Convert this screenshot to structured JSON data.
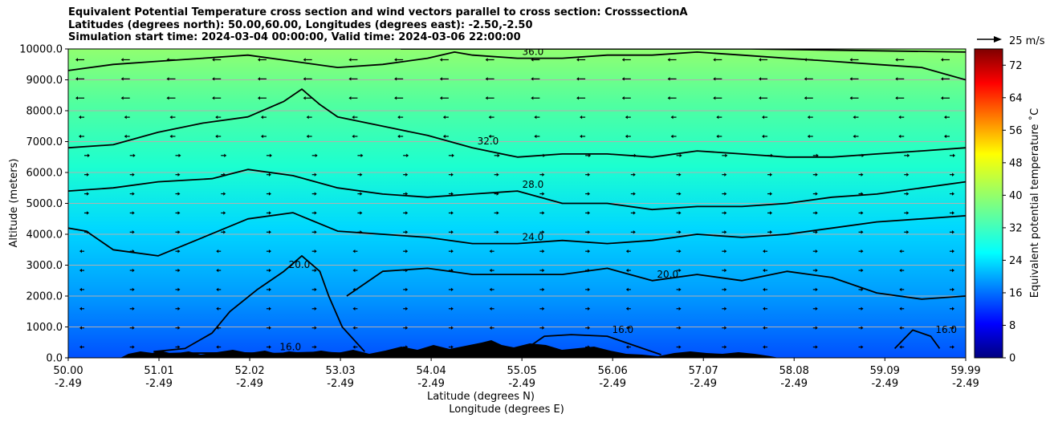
{
  "chart_data": {
    "type": "contour-filled",
    "title_lines": [
      "Equivalent Potential Temperature cross section and wind vectors parallel to cross section: CrosssectionA",
      "Latitudes (degrees north): 50.00,60.00, Longitudes (degrees east): -2.50,-2.50",
      "Simulation start time: 2024-03-04 00:00:00, Valid time: 2024-03-06 22:00:00"
    ],
    "ylabel": "Altitude (meters)",
    "xlabel": "Latitude (degrees N)",
    "xlabel2": "Longitude (degrees E)",
    "ylim": [
      0,
      10000
    ],
    "xlim": [
      50.0,
      59.99
    ],
    "yticks": [
      {
        "v": 0,
        "label": "0.0"
      },
      {
        "v": 1000,
        "label": "1000.0"
      },
      {
        "v": 2000,
        "label": "2000.0"
      },
      {
        "v": 3000,
        "label": "3000.0"
      },
      {
        "v": 4000,
        "label": "4000.0"
      },
      {
        "v": 5000,
        "label": "5000.0"
      },
      {
        "v": 6000,
        "label": "6000.0"
      },
      {
        "v": 7000,
        "label": "7000.0"
      },
      {
        "v": 8000,
        "label": "8000.0"
      },
      {
        "v": 9000,
        "label": "9000.0"
      },
      {
        "v": 10000,
        "label": "10000.0"
      }
    ],
    "xticks": [
      {
        "v": 50.0,
        "lat": "50.00",
        "lon": "-2.49"
      },
      {
        "v": 51.01,
        "lat": "51.01",
        "lon": "-2.49"
      },
      {
        "v": 52.02,
        "lat": "52.02",
        "lon": "-2.49"
      },
      {
        "v": 53.03,
        "lat": "53.03",
        "lon": "-2.49"
      },
      {
        "v": 54.04,
        "lat": "54.04",
        "lon": "-2.49"
      },
      {
        "v": 55.05,
        "lat": "55.05",
        "lon": "-2.49"
      },
      {
        "v": 56.06,
        "lat": "56.06",
        "lon": "-2.49"
      },
      {
        "v": 57.07,
        "lat": "57.07",
        "lon": "-2.49"
      },
      {
        "v": 58.08,
        "lat": "58.08",
        "lon": "-2.49"
      },
      {
        "v": 59.09,
        "lat": "59.09",
        "lon": "-2.49"
      },
      {
        "v": 59.99,
        "lat": "59.99",
        "lon": "-2.49"
      }
    ],
    "grid": "horizontal",
    "colorbar": {
      "label": "Equivalent potential temperature ˚C",
      "min": 0,
      "max": 76,
      "ticks": [
        "0",
        "8",
        "16",
        "24",
        "32",
        "40",
        "48",
        "56",
        "64",
        "72"
      ],
      "tick_values": [
        0,
        8,
        16,
        24,
        32,
        40,
        48,
        56,
        64,
        72
      ],
      "colormap": "jet"
    },
    "vector_key": {
      "label": "25 m/s"
    },
    "contours": [
      {
        "level": "16.0",
        "points": [
          [
            50.95,
            120
          ],
          [
            51.3,
            150
          ],
          [
            51.9,
            160
          ],
          [
            52.3,
            140
          ],
          [
            52.8,
            180
          ],
          [
            53.3,
            120
          ]
        ]
      },
      {
        "level": "16.0",
        "points": [
          [
            55.05,
            200
          ],
          [
            55.3,
            700
          ],
          [
            55.6,
            750
          ],
          [
            56.0,
            700
          ],
          [
            56.3,
            400
          ],
          [
            56.6,
            100
          ]
        ]
      },
      {
        "level": "16.0",
        "points": [
          [
            59.2,
            300
          ],
          [
            59.4,
            900
          ],
          [
            59.6,
            700
          ],
          [
            59.7,
            300
          ]
        ]
      },
      {
        "level": "20.0",
        "points": [
          [
            50.95,
            200
          ],
          [
            51.3,
            300
          ],
          [
            51.6,
            800
          ],
          [
            51.8,
            1500
          ],
          [
            52.1,
            2200
          ],
          [
            52.4,
            2800
          ],
          [
            52.6,
            3300
          ],
          [
            52.8,
            2800
          ],
          [
            52.9,
            2000
          ],
          [
            53.05,
            1000
          ],
          [
            53.3,
            200
          ]
        ]
      },
      {
        "level": "20.0",
        "points": [
          [
            53.1,
            2000
          ],
          [
            53.5,
            2800
          ],
          [
            54.0,
            2900
          ],
          [
            54.5,
            2700
          ],
          [
            55.0,
            2700
          ],
          [
            55.5,
            2700
          ],
          [
            56.0,
            2900
          ],
          [
            56.5,
            2500
          ],
          [
            57.0,
            2700
          ],
          [
            57.5,
            2500
          ],
          [
            58.0,
            2800
          ],
          [
            58.5,
            2600
          ],
          [
            59.0,
            2100
          ],
          [
            59.5,
            1900
          ],
          [
            59.99,
            2000
          ]
        ]
      },
      {
        "level": "24.0",
        "points": [
          [
            50.0,
            4200
          ],
          [
            50.2,
            4100
          ],
          [
            50.5,
            3500
          ],
          [
            51.0,
            3300
          ],
          [
            51.5,
            3900
          ],
          [
            52.0,
            4500
          ],
          [
            52.5,
            4700
          ],
          [
            53.0,
            4100
          ],
          [
            53.5,
            4000
          ],
          [
            54.0,
            3900
          ],
          [
            54.5,
            3700
          ],
          [
            55.0,
            3700
          ],
          [
            55.5,
            3800
          ],
          [
            56.0,
            3700
          ],
          [
            56.5,
            3800
          ],
          [
            57.0,
            4000
          ],
          [
            57.5,
            3900
          ],
          [
            58.0,
            4000
          ],
          [
            58.5,
            4200
          ],
          [
            59.0,
            4400
          ],
          [
            59.5,
            4500
          ],
          [
            59.99,
            4600
          ]
        ]
      },
      {
        "level": "28.0",
        "points": [
          [
            50.0,
            5400
          ],
          [
            50.5,
            5500
          ],
          [
            51.0,
            5700
          ],
          [
            51.6,
            5800
          ],
          [
            52.0,
            6100
          ],
          [
            52.5,
            5900
          ],
          [
            53.0,
            5500
          ],
          [
            53.5,
            5300
          ],
          [
            54.0,
            5200
          ],
          [
            54.5,
            5300
          ],
          [
            55.0,
            5400
          ],
          [
            55.5,
            5000
          ],
          [
            56.0,
            5000
          ],
          [
            56.5,
            4800
          ],
          [
            57.0,
            4900
          ],
          [
            57.5,
            4900
          ],
          [
            58.0,
            5000
          ],
          [
            58.5,
            5200
          ],
          [
            59.0,
            5300
          ],
          [
            59.5,
            5500
          ],
          [
            59.99,
            5700
          ]
        ]
      },
      {
        "level": "32.0",
        "points": [
          [
            50.0,
            6800
          ],
          [
            50.5,
            6900
          ],
          [
            51.0,
            7300
          ],
          [
            51.5,
            7600
          ],
          [
            52.0,
            7800
          ],
          [
            52.4,
            8300
          ],
          [
            52.6,
            8700
          ],
          [
            52.8,
            8200
          ],
          [
            53.0,
            7800
          ],
          [
            53.5,
            7500
          ],
          [
            54.0,
            7200
          ],
          [
            54.5,
            6800
          ],
          [
            55.0,
            6500
          ],
          [
            55.5,
            6600
          ],
          [
            56.0,
            6600
          ],
          [
            56.5,
            6500
          ],
          [
            57.0,
            6700
          ],
          [
            57.5,
            6600
          ],
          [
            58.0,
            6500
          ],
          [
            58.5,
            6500
          ],
          [
            59.0,
            6600
          ],
          [
            59.5,
            6700
          ],
          [
            59.99,
            6800
          ]
        ]
      },
      {
        "level": "36.0",
        "points": [
          [
            50.0,
            9300
          ],
          [
            50.5,
            9500
          ],
          [
            51.0,
            9600
          ],
          [
            51.5,
            9700
          ],
          [
            52.0,
            9800
          ],
          [
            52.5,
            9600
          ],
          [
            53.0,
            9400
          ],
          [
            53.5,
            9500
          ],
          [
            54.0,
            9700
          ],
          [
            54.3,
            9900
          ],
          [
            54.5,
            9800
          ],
          [
            55.0,
            9700
          ],
          [
            55.5,
            9700
          ],
          [
            56.0,
            9800
          ],
          [
            56.5,
            9800
          ],
          [
            57.0,
            9900
          ],
          [
            57.5,
            9800
          ],
          [
            58.0,
            9700
          ],
          [
            58.5,
            9600
          ],
          [
            59.0,
            9500
          ],
          [
            59.5,
            9400
          ],
          [
            59.99,
            9000
          ]
        ]
      },
      {
        "level": "40.0",
        "points": [
          [
            53.7,
            10000
          ],
          [
            54.6,
            10000
          ],
          [
            55.3,
            10000
          ],
          [
            56.8,
            10000
          ],
          [
            57.6,
            10000
          ],
          [
            59.99,
            9900
          ]
        ]
      }
    ]
  }
}
